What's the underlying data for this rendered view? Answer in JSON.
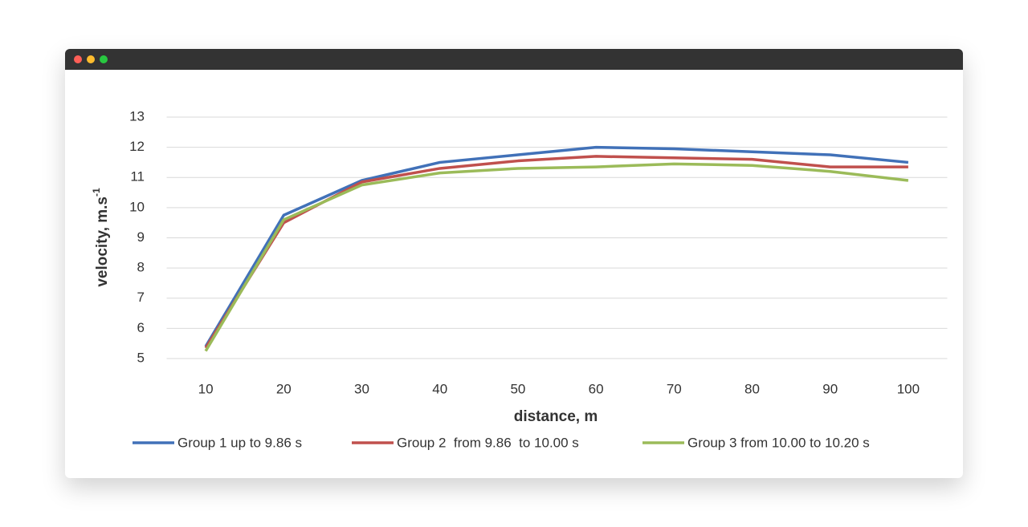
{
  "chart_data": {
    "type": "line",
    "x_label": "distance, m",
    "y_label": "velocity, m.s",
    "y_label_superscript": "-1",
    "categories": [
      "10",
      "20",
      "30",
      "40",
      "50",
      "60",
      "70",
      "80",
      "90",
      "100"
    ],
    "series": [
      {
        "name": "Group 1 up to 9.86 s",
        "color": "#4171b8",
        "values": [
          5.4,
          9.75,
          10.9,
          11.5,
          11.75,
          12.0,
          11.95,
          11.85,
          11.75,
          11.5
        ]
      },
      {
        "name": "Group 2  from 9.86  to 10.00 s",
        "color": "#c0504d",
        "values": [
          5.35,
          9.5,
          10.85,
          11.3,
          11.55,
          11.7,
          11.65,
          11.6,
          11.35,
          11.35
        ]
      },
      {
        "name": "Group 3 from 10.00 to 10.20 s",
        "color": "#9bbb59",
        "values": [
          5.25,
          9.6,
          10.75,
          11.15,
          11.3,
          11.35,
          11.45,
          11.4,
          11.2,
          10.9
        ]
      }
    ],
    "ylim": [
      5,
      13
    ],
    "yticks": [
      5,
      6,
      7,
      8,
      9,
      10,
      11,
      12,
      13
    ],
    "grid": true,
    "legend": "bottom"
  }
}
